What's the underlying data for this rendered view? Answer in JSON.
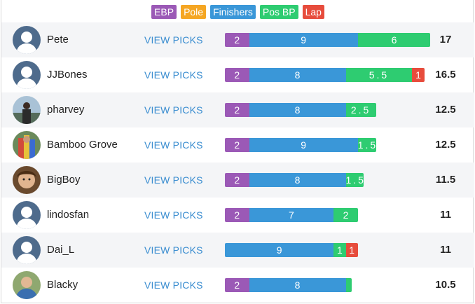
{
  "colors": {
    "ebp": "#9b59b6",
    "pole": "#f5a623",
    "finishers": "#3a97d8",
    "pos_bp": "#2ecc71",
    "lap": "#e74c3c"
  },
  "legend": [
    {
      "key": "ebp",
      "label": "EBP"
    },
    {
      "key": "pole",
      "label": "Pole"
    },
    {
      "key": "finishers",
      "label": "Finishers"
    },
    {
      "key": "pos_bp",
      "label": "Pos BP"
    },
    {
      "key": "lap",
      "label": "Lap"
    }
  ],
  "view_label": "VIEW PICKS",
  "rows": [
    {
      "name": "Pete",
      "avatar": "default-avatar-icon",
      "total": "17",
      "segments": [
        {
          "key": "ebp",
          "value": 2,
          "label": "2"
        },
        {
          "key": "finishers",
          "value": 9,
          "label": "9"
        },
        {
          "key": "pos_bp",
          "value": 6,
          "label": "6"
        }
      ]
    },
    {
      "name": "JJBones",
      "avatar": "default-avatar-icon",
      "total": "16.5",
      "segments": [
        {
          "key": "ebp",
          "value": 2,
          "label": "2"
        },
        {
          "key": "finishers",
          "value": 8,
          "label": "8"
        },
        {
          "key": "pos_bp",
          "value": 5.5,
          "label": "5.5"
        },
        {
          "key": "lap",
          "value": 1,
          "label": "1"
        }
      ]
    },
    {
      "name": "pharvey",
      "avatar": "photo-avatar-lake",
      "total": "12.5",
      "segments": [
        {
          "key": "ebp",
          "value": 2,
          "label": "2"
        },
        {
          "key": "finishers",
          "value": 8,
          "label": "8"
        },
        {
          "key": "pos_bp",
          "value": 2.5,
          "label": "2.5"
        }
      ]
    },
    {
      "name": "Bamboo Grove",
      "avatar": "photo-avatar-colorful",
      "total": "12.5",
      "segments": [
        {
          "key": "ebp",
          "value": 2,
          "label": "2"
        },
        {
          "key": "finishers",
          "value": 9,
          "label": "9"
        },
        {
          "key": "pos_bp",
          "value": 1.5,
          "label": "1.5"
        }
      ]
    },
    {
      "name": "BigBoy",
      "avatar": "photo-avatar-face",
      "total": "11.5",
      "segments": [
        {
          "key": "ebp",
          "value": 2,
          "label": "2"
        },
        {
          "key": "finishers",
          "value": 8,
          "label": "8"
        },
        {
          "key": "pos_bp",
          "value": 1.5,
          "label": "1.5"
        }
      ]
    },
    {
      "name": "lindosfan",
      "avatar": "default-avatar-icon",
      "total": "11",
      "segments": [
        {
          "key": "ebp",
          "value": 2,
          "label": "2"
        },
        {
          "key": "finishers",
          "value": 7,
          "label": "7"
        },
        {
          "key": "pos_bp",
          "value": 2,
          "label": "2"
        }
      ]
    },
    {
      "name": "Dai_L",
      "avatar": "default-avatar-icon",
      "total": "11",
      "segments": [
        {
          "key": "finishers",
          "value": 9,
          "label": "9"
        },
        {
          "key": "pos_bp",
          "value": 1,
          "label": "1"
        },
        {
          "key": "lap",
          "value": 1,
          "label": "1"
        }
      ]
    },
    {
      "name": "Blacky",
      "avatar": "photo-avatar-person",
      "total": "10.5",
      "segments": [
        {
          "key": "ebp",
          "value": 2,
          "label": "2"
        },
        {
          "key": "finishers",
          "value": 8,
          "label": "8"
        },
        {
          "key": "pos_bp",
          "value": 0.5,
          "label": ""
        }
      ]
    }
  ]
}
